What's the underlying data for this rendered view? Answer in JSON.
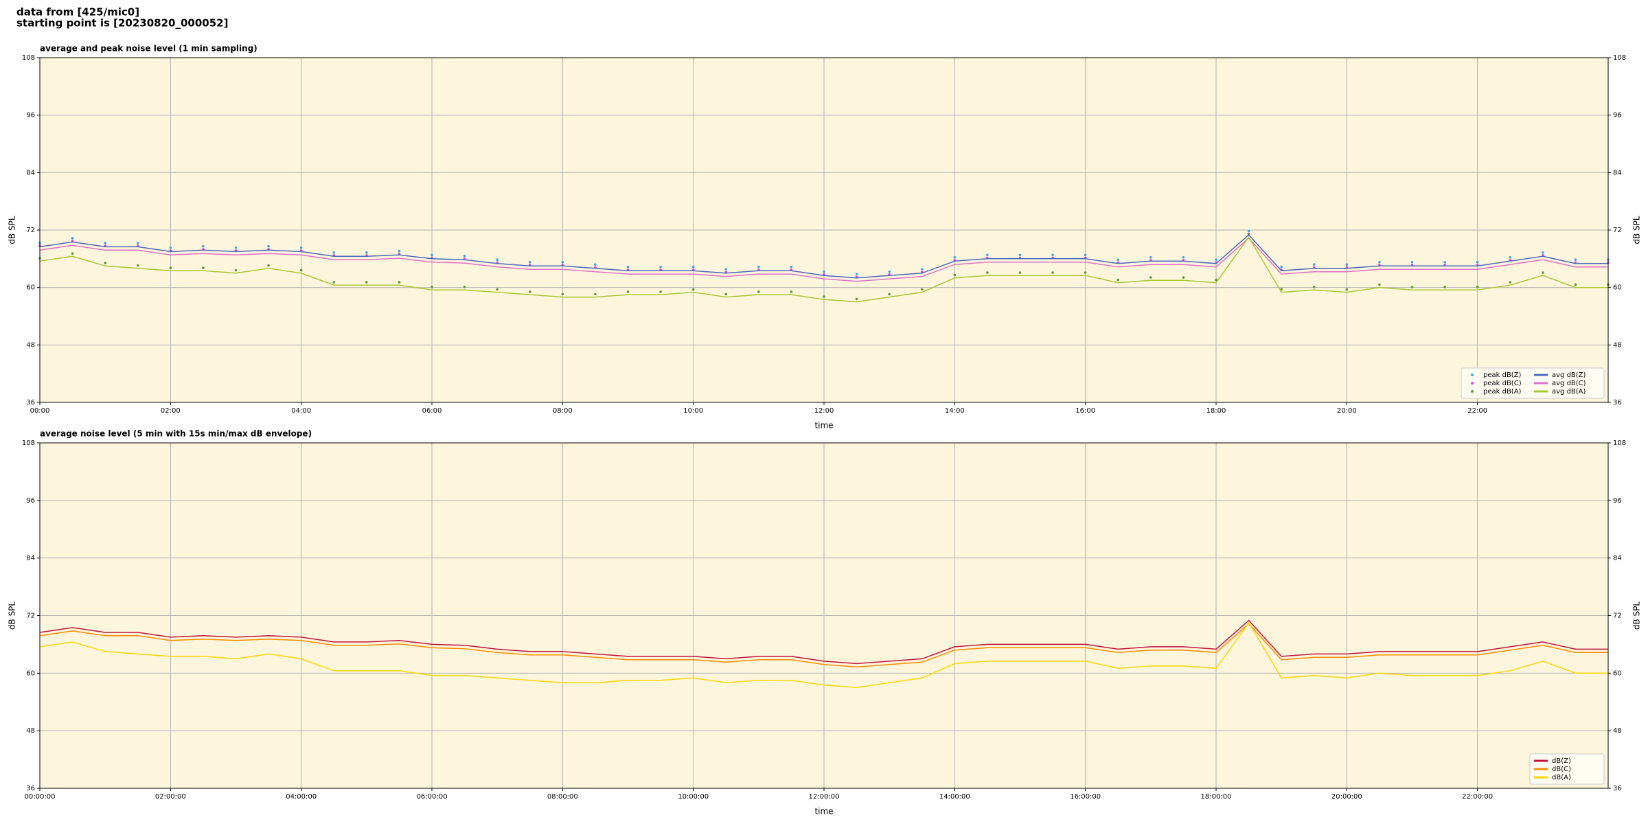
{
  "header": {
    "lines": [
      "data from [425/mic0]",
      "starting point is [20230820_000052]"
    ]
  },
  "chart_data": [
    {
      "type": "line",
      "title": "average and peak noise level (1 min sampling)",
      "xlabel": "time",
      "ylabel": "dB SPL",
      "x": [
        0,
        0.5,
        1,
        1.5,
        2,
        2.5,
        3,
        3.5,
        4,
        4.5,
        5,
        5.5,
        6,
        6.5,
        7,
        7.5,
        8,
        8.5,
        9,
        9.5,
        10,
        10.5,
        11,
        11.5,
        12,
        12.5,
        13,
        13.5,
        14,
        14.5,
        15,
        15.5,
        16,
        16.5,
        17,
        17.5,
        18,
        18.5,
        19,
        19.5,
        20,
        20.5,
        21,
        21.5,
        22,
        22.5,
        23,
        23.5,
        24
      ],
      "xlim": [
        0,
        24
      ],
      "xticks": [
        {
          "value": 0,
          "label": "00:00"
        },
        {
          "value": 2,
          "label": "02:00"
        },
        {
          "value": 4,
          "label": "04:00"
        },
        {
          "value": 6,
          "label": "06:00"
        },
        {
          "value": 8,
          "label": "08:00"
        },
        {
          "value": 10,
          "label": "10:00"
        },
        {
          "value": 12,
          "label": "12:00"
        },
        {
          "value": 14,
          "label": "14:00"
        },
        {
          "value": 16,
          "label": "16:00"
        },
        {
          "value": 18,
          "label": "18:00"
        },
        {
          "value": 20,
          "label": "20:00"
        },
        {
          "value": 22,
          "label": "22:00"
        }
      ],
      "ylim": [
        36,
        108
      ],
      "yticks": [
        36,
        48,
        60,
        72,
        84,
        96,
        108
      ],
      "grid": true,
      "legend": "lower right",
      "legend_columns": 2,
      "series": [
        {
          "name": "peak dB(Z)",
          "mark": "dot",
          "color": "#3fa7e0",
          "values": [
            69.3,
            70.3,
            69.3,
            69.3,
            68.3,
            68.6,
            68.3,
            68.6,
            68.3,
            67.3,
            67.3,
            67.6,
            66.8,
            66.6,
            65.8,
            65.3,
            65.3,
            64.8,
            64.3,
            64.3,
            64.3,
            63.8,
            64.3,
            64.3,
            63.3,
            62.8,
            63.3,
            63.8,
            66.3,
            66.8,
            66.8,
            66.8,
            66.8,
            65.8,
            66.3,
            66.3,
            65.8,
            71.8,
            64.3,
            64.8,
            64.8,
            65.3,
            65.3,
            65.3,
            65.3,
            66.3,
            67.3,
            65.8,
            65.8
          ]
        },
        {
          "name": "peak dB(C)",
          "mark": "dot",
          "color": "#e040e0",
          "values": [
            68.7,
            69.7,
            68.7,
            68.7,
            67.7,
            68,
            67.7,
            68,
            67.7,
            66.7,
            66.7,
            67,
            66.2,
            66,
            65.2,
            64.7,
            64.7,
            64.2,
            63.7,
            63.7,
            63.7,
            63.2,
            63.7,
            63.7,
            62.7,
            62.2,
            62.7,
            63.2,
            65.7,
            66.2,
            66.2,
            66.2,
            66.2,
            65.2,
            65.7,
            65.7,
            65.2,
            71.2,
            63.7,
            64.2,
            64.2,
            64.7,
            64.7,
            64.7,
            64.7,
            65.7,
            66.7,
            65.2,
            65.2
          ]
        },
        {
          "name": "peak dB(A)",
          "mark": "dot",
          "color": "#5a9a3a",
          "values": [
            66.1,
            67.1,
            65.1,
            64.6,
            64.1,
            64.1,
            63.6,
            64.6,
            63.6,
            61.1,
            61.1,
            61.1,
            60.1,
            60.1,
            59.6,
            59.1,
            58.6,
            58.6,
            59.1,
            59.1,
            59.6,
            58.6,
            59.1,
            59.1,
            58.1,
            57.6,
            58.6,
            59.6,
            62.6,
            63.1,
            63.1,
            63.1,
            63.1,
            61.6,
            62.1,
            62.1,
            61.6,
            71.1,
            59.6,
            60.1,
            59.6,
            60.6,
            60.1,
            60.1,
            60.1,
            61.1,
            63.1,
            60.6,
            60.6
          ]
        },
        {
          "name": "avg dB(Z)",
          "mark": "line",
          "color": "#4a68c0",
          "values": [
            68.5,
            69.5,
            68.5,
            68.5,
            67.5,
            67.8,
            67.5,
            67.8,
            67.5,
            66.5,
            66.5,
            66.8,
            66,
            65.8,
            65,
            64.5,
            64.5,
            64,
            63.5,
            63.5,
            63.5,
            63,
            63.5,
            63.5,
            62.5,
            62,
            62.5,
            63,
            65.5,
            66,
            66,
            66,
            66,
            65,
            65.5,
            65.5,
            65,
            71,
            63.5,
            64,
            64,
            64.5,
            64.5,
            64.5,
            64.5,
            65.5,
            66.5,
            65,
            65
          ]
        },
        {
          "name": "avg dB(C)",
          "mark": "line",
          "color": "#e070c8",
          "values": [
            67.8,
            68.8,
            67.8,
            67.8,
            66.8,
            67.1,
            66.8,
            67.1,
            66.8,
            65.8,
            65.8,
            66.1,
            65.3,
            65.1,
            64.3,
            63.8,
            63.8,
            63.3,
            62.8,
            62.8,
            62.8,
            62.3,
            62.8,
            62.8,
            61.8,
            61.3,
            61.8,
            62.3,
            64.8,
            65.3,
            65.3,
            65.3,
            65.3,
            64.3,
            64.8,
            64.8,
            64.3,
            70.3,
            62.8,
            63.3,
            63.3,
            63.8,
            63.8,
            63.8,
            63.8,
            64.8,
            65.8,
            64.3,
            64.3
          ]
        },
        {
          "name": "avg dB(A)",
          "mark": "line",
          "color": "#a8c830",
          "values": [
            65.5,
            66.5,
            64.5,
            64,
            63.5,
            63.5,
            63,
            64,
            63,
            60.5,
            60.5,
            60.5,
            59.5,
            59.5,
            59,
            58.5,
            58,
            58,
            58.5,
            58.5,
            59,
            58,
            58.5,
            58.5,
            57.5,
            57,
            58,
            59,
            62,
            62.5,
            62.5,
            62.5,
            62.5,
            61,
            61.5,
            61.5,
            61,
            70.5,
            59,
            59.5,
            59,
            60,
            59.5,
            59.5,
            59.5,
            60.5,
            62.5,
            60,
            60
          ]
        }
      ]
    },
    {
      "type": "line",
      "title": "average noise level (5 min with 15s min/max dB envelope)",
      "xlabel": "time",
      "ylabel": "dB SPL",
      "x": [
        0,
        0.5,
        1,
        1.5,
        2,
        2.5,
        3,
        3.5,
        4,
        4.5,
        5,
        5.5,
        6,
        6.5,
        7,
        7.5,
        8,
        8.5,
        9,
        9.5,
        10,
        10.5,
        11,
        11.5,
        12,
        12.5,
        13,
        13.5,
        14,
        14.5,
        15,
        15.5,
        16,
        16.5,
        17,
        17.5,
        18,
        18.5,
        19,
        19.5,
        20,
        20.5,
        21,
        21.5,
        22,
        22.5,
        23,
        23.5,
        24
      ],
      "xlim": [
        0,
        24
      ],
      "xticks": [
        {
          "value": 0,
          "label": "00:00:00"
        },
        {
          "value": 2,
          "label": "02:00:00"
        },
        {
          "value": 4,
          "label": "04:00:00"
        },
        {
          "value": 6,
          "label": "06:00:00"
        },
        {
          "value": 8,
          "label": "08:00:00"
        },
        {
          "value": 10,
          "label": "10:00:00"
        },
        {
          "value": 12,
          "label": "12:00:00"
        },
        {
          "value": 14,
          "label": "14:00:00"
        },
        {
          "value": 16,
          "label": "16:00:00"
        },
        {
          "value": 18,
          "label": "18:00:00"
        },
        {
          "value": 20,
          "label": "20:00:00"
        },
        {
          "value": 22,
          "label": "22:00:00"
        }
      ],
      "ylim": [
        36,
        108
      ],
      "yticks": [
        36,
        48,
        60,
        72,
        84,
        96,
        108
      ],
      "grid": true,
      "legend": "lower right",
      "legend_columns": 1,
      "series": [
        {
          "name": "dB(Z)",
          "mark": "line",
          "color": "#c0143c",
          "values": [
            68.5,
            69.5,
            68.5,
            68.5,
            67.5,
            67.8,
            67.5,
            67.8,
            67.5,
            66.5,
            66.5,
            66.8,
            66,
            65.8,
            65,
            64.5,
            64.5,
            64,
            63.5,
            63.5,
            63.5,
            63,
            63.5,
            63.5,
            62.5,
            62,
            62.5,
            63,
            65.5,
            66,
            66,
            66,
            66,
            65,
            65.5,
            65.5,
            65,
            71,
            63.5,
            64,
            64,
            64.5,
            64.5,
            64.5,
            64.5,
            65.5,
            66.5,
            65,
            65
          ]
        },
        {
          "name": "dB(C)",
          "mark": "line",
          "color": "#ff8c00",
          "values": [
            67.8,
            68.8,
            67.8,
            67.8,
            66.8,
            67.1,
            66.8,
            67.1,
            66.8,
            65.8,
            65.8,
            66.1,
            65.3,
            65.1,
            64.3,
            63.8,
            63.8,
            63.3,
            62.8,
            62.8,
            62.8,
            62.3,
            62.8,
            62.8,
            61.8,
            61.3,
            61.8,
            62.3,
            64.8,
            65.3,
            65.3,
            65.3,
            65.3,
            64.3,
            64.8,
            64.8,
            64.3,
            70.3,
            62.8,
            63.3,
            63.3,
            63.8,
            63.8,
            63.8,
            63.8,
            64.8,
            65.8,
            64.3,
            64.3
          ]
        },
        {
          "name": "dB(A)",
          "mark": "line",
          "color": "#ffd700",
          "values": [
            65.5,
            66.5,
            64.5,
            64,
            63.5,
            63.5,
            63,
            64,
            63,
            60.5,
            60.5,
            60.5,
            59.5,
            59.5,
            59,
            58.5,
            58,
            58,
            58.5,
            58.5,
            59,
            58,
            58.5,
            58.5,
            57.5,
            57,
            58,
            59,
            62,
            62.5,
            62.5,
            62.5,
            62.5,
            61,
            61.5,
            61.5,
            61,
            70.5,
            59,
            59.5,
            59,
            60,
            59.5,
            59.5,
            59.5,
            60.5,
            62.5,
            60,
            60
          ]
        }
      ]
    }
  ]
}
